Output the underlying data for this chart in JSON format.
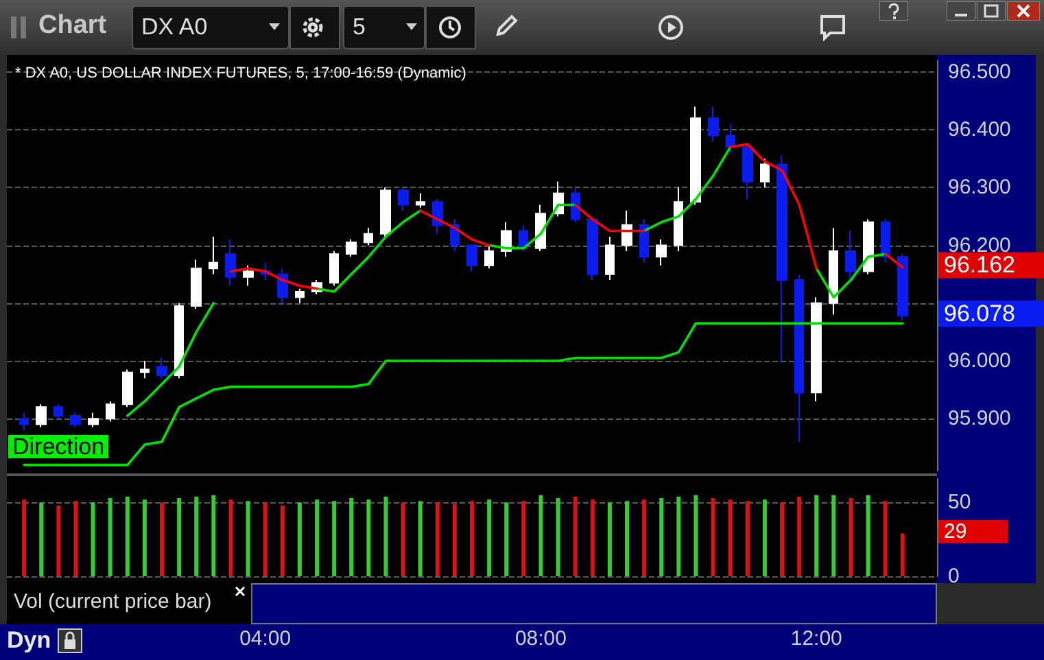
{
  "chart_data": [
    {
      "type": "candlestick",
      "title": "* DX A0, US DOLLAR INDEX FUTURES, 5, 17:00-16:59 (Dynamic)",
      "x": [
        0.5,
        0.75,
        1,
        1.25,
        1.5,
        1.75,
        2,
        2.25,
        2.5,
        2.75,
        3,
        3.25,
        3.5,
        3.75,
        4,
        4.25,
        4.5,
        4.75,
        5,
        5.25,
        5.5,
        5.75,
        6,
        6.25,
        6.5,
        6.75,
        7,
        7.25,
        7.5,
        7.75,
        8,
        8.25,
        8.5,
        8.75,
        9,
        9.25,
        9.5,
        9.75,
        10,
        10.25,
        10.5,
        10.75,
        11,
        11.25,
        11.5,
        11.75,
        12,
        12.25,
        12.5,
        12.75,
        13,
        13.25
      ],
      "ohlc": [
        [
          95.9,
          95.91,
          95.88,
          95.89
        ],
        [
          95.89,
          95.925,
          95.885,
          95.92
        ],
        [
          95.92,
          95.925,
          95.9,
          95.905
        ],
        [
          95.905,
          95.91,
          95.885,
          95.89
        ],
        [
          95.89,
          95.91,
          95.885,
          95.9
        ],
        [
          95.9,
          95.93,
          95.895,
          95.925
        ],
        [
          95.925,
          95.985,
          95.92,
          95.98
        ],
        [
          95.98,
          96.0,
          95.97,
          95.985
        ],
        [
          95.99,
          96.005,
          95.97,
          95.975
        ],
        [
          95.975,
          96.1,
          95.97,
          96.095
        ],
        [
          96.095,
          96.175,
          96.09,
          96.16
        ],
        [
          96.16,
          96.215,
          96.15,
          96.17
        ],
        [
          96.185,
          96.21,
          96.13,
          96.145
        ],
        [
          96.145,
          96.165,
          96.13,
          96.155
        ],
        [
          96.155,
          96.17,
          96.14,
          96.15
        ],
        [
          96.15,
          96.16,
          96.1,
          96.11
        ],
        [
          96.11,
          96.125,
          96.1,
          96.12
        ],
        [
          96.12,
          96.14,
          96.115,
          96.135
        ],
        [
          96.135,
          96.19,
          96.13,
          96.185
        ],
        [
          96.185,
          96.21,
          96.18,
          96.205
        ],
        [
          96.205,
          96.23,
          96.2,
          96.22
        ],
        [
          96.22,
          96.3,
          96.21,
          96.295
        ],
        [
          96.295,
          96.3,
          96.26,
          96.27
        ],
        [
          96.27,
          96.29,
          96.265,
          96.275
        ],
        [
          96.275,
          96.28,
          96.22,
          96.235
        ],
        [
          96.235,
          96.245,
          96.19,
          96.2
        ],
        [
          96.2,
          96.2,
          96.155,
          96.165
        ],
        [
          96.165,
          96.2,
          96.16,
          96.19
        ],
        [
          96.19,
          96.24,
          96.18,
          96.225
        ],
        [
          96.225,
          96.235,
          96.19,
          96.195
        ],
        [
          96.195,
          96.27,
          96.19,
          96.255
        ],
        [
          96.255,
          96.31,
          96.25,
          96.29
        ],
        [
          96.29,
          96.3,
          96.24,
          96.245
        ],
        [
          96.245,
          96.25,
          96.14,
          96.15
        ],
        [
          96.15,
          96.215,
          96.14,
          96.2
        ],
        [
          96.2,
          96.26,
          96.19,
          96.235
        ],
        [
          96.235,
          96.245,
          96.17,
          96.18
        ],
        [
          96.18,
          96.21,
          96.165,
          96.2
        ],
        [
          96.2,
          96.3,
          96.19,
          96.275
        ],
        [
          96.275,
          96.44,
          96.27,
          96.42
        ],
        [
          96.42,
          96.44,
          96.38,
          96.39
        ],
        [
          96.39,
          96.41,
          96.36,
          96.37
        ],
        [
          96.37,
          96.375,
          96.28,
          96.31
        ],
        [
          96.31,
          96.35,
          96.3,
          96.34
        ],
        [
          96.34,
          96.355,
          96.0,
          96.14
        ],
        [
          96.14,
          96.15,
          95.86,
          95.945
        ],
        [
          95.945,
          96.11,
          95.93,
          96.1
        ],
        [
          96.1,
          96.23,
          96.08,
          96.19
        ],
        [
          96.19,
          96.225,
          96.14,
          96.155
        ],
        [
          96.155,
          96.245,
          96.15,
          96.24
        ],
        [
          96.24,
          96.245,
          96.17,
          96.18
        ],
        [
          96.18,
          96.185,
          96.07,
          96.078
        ]
      ],
      "colors": [
        "#0a1cf0",
        "#ffffff",
        "#0a1cf0",
        "#0a1cf0",
        "#ffffff",
        "#ffffff",
        "#ffffff",
        "#ffffff",
        "#0a1cf0",
        "#ffffff",
        "#ffffff",
        "#ffffff",
        "#0a1cf0",
        "#ffffff",
        "#0a1cf0",
        "#0a1cf0",
        "#ffffff",
        "#ffffff",
        "#ffffff",
        "#ffffff",
        "#ffffff",
        "#ffffff",
        "#0a1cf0",
        "#ffffff",
        "#0a1cf0",
        "#0a1cf0",
        "#0a1cf0",
        "#ffffff",
        "#ffffff",
        "#0a1cf0",
        "#ffffff",
        "#ffffff",
        "#0a1cf0",
        "#0a1cf0",
        "#ffffff",
        "#ffffff",
        "#0a1cf0",
        "#ffffff",
        "#ffffff",
        "#ffffff",
        "#0a1cf0",
        "#0a1cf0",
        "#0a1cf0",
        "#ffffff",
        "#0a1cf0",
        "#0a1cf0",
        "#ffffff",
        "#ffffff",
        "#0a1cf0",
        "#ffffff",
        "#0a1cf0",
        "#0a1cf0"
      ],
      "series": [
        {
          "type": "line",
          "color": "#00e000",
          "values": [
            null,
            null,
            null,
            null,
            null,
            null,
            95.905,
            95.93,
            95.96,
            95.99,
            96.05,
            96.1,
            null,
            null,
            null,
            null,
            null,
            96.125,
            96.12,
            96.15,
            96.18,
            96.215,
            96.24,
            96.26,
            null,
            null,
            null,
            96.2,
            96.195,
            96.195,
            96.22,
            96.27,
            96.27,
            null,
            null,
            null,
            96.225,
            96.24,
            96.25,
            96.28,
            96.32,
            96.37,
            null,
            null,
            null,
            null,
            96.16,
            96.11,
            96.14,
            96.18,
            96.185,
            null
          ]
        },
        {
          "type": "line",
          "color": "#ff0000",
          "values": [
            null,
            null,
            null,
            null,
            null,
            null,
            null,
            null,
            null,
            null,
            null,
            null,
            96.155,
            96.16,
            96.155,
            96.14,
            96.13,
            96.125,
            null,
            null,
            null,
            null,
            null,
            96.26,
            96.245,
            96.23,
            96.21,
            96.2,
            null,
            null,
            null,
            null,
            96.27,
            96.245,
            96.225,
            96.225,
            96.225,
            null,
            null,
            null,
            null,
            96.37,
            96.375,
            96.345,
            96.33,
            96.27,
            96.16,
            null,
            null,
            null,
            96.185,
            96.162
          ]
        },
        {
          "type": "line",
          "color": "#00e000",
          "values": [
            95.82,
            95.82,
            95.82,
            95.82,
            95.82,
            95.82,
            95.82,
            95.855,
            95.86,
            95.92,
            95.935,
            95.95,
            95.955,
            95.955,
            95.955,
            95.955,
            95.955,
            95.955,
            95.955,
            95.955,
            95.96,
            96.0,
            96.0,
            96.0,
            96.0,
            96.0,
            96.0,
            96.0,
            96.0,
            96.0,
            96.0,
            96.0,
            96.005,
            96.005,
            96.005,
            96.005,
            96.005,
            96.005,
            96.015,
            96.065,
            96.065,
            96.065,
            96.065,
            96.065,
            96.065,
            96.065,
            96.065,
            96.065,
            96.065,
            96.065,
            96.065,
            96.065
          ]
        }
      ],
      "xlim": [
        0.25,
        13.75
      ],
      "ylim": [
        95.81,
        96.52
      ],
      "yticks": [
        {
          "value": 95.9,
          "label": "95.900"
        },
        {
          "value": 96.0,
          "label": "96.000"
        },
        {
          "value": 96.1,
          "label": null
        },
        {
          "value": 96.2,
          "label": "96.200"
        },
        {
          "value": 96.3,
          "label": "96.300"
        },
        {
          "value": 96.4,
          "label": "96.400"
        },
        {
          "value": 96.5,
          "label": "96.500"
        }
      ],
      "grid": "y",
      "marker": "none",
      "line_style": "solid",
      "tick_labels": "y",
      "annotations": [
        "Chart",
        "DX A0",
        "5",
        "Direction",
        "96.162",
        "96.078"
      ]
    },
    {
      "type": "bar",
      "x": [
        0.5,
        0.75,
        1,
        1.25,
        1.5,
        1.75,
        2,
        2.25,
        2.5,
        2.75,
        3,
        3.25,
        3.5,
        3.75,
        4,
        4.25,
        4.5,
        4.75,
        5,
        5.25,
        5.5,
        5.75,
        6,
        6.25,
        6.5,
        6.75,
        7,
        7.25,
        7.5,
        7.75,
        8,
        8.25,
        8.5,
        8.75,
        9,
        9.25,
        9.5,
        9.75,
        10,
        10.25,
        10.5,
        10.75,
        11,
        11.25,
        11.5,
        11.75,
        12,
        12.25,
        12.5,
        12.75,
        13,
        13.25
      ],
      "values": [
        52,
        50,
        48,
        51,
        50,
        53,
        54,
        52,
        50,
        53,
        54,
        55,
        52,
        51,
        50,
        48,
        50,
        52,
        51,
        53,
        52,
        54,
        50,
        51,
        50,
        49,
        51,
        52,
        50,
        51,
        55,
        53,
        54,
        52,
        50,
        51,
        52,
        53,
        54,
        55,
        53,
        52,
        51,
        52,
        50,
        54,
        55,
        55,
        53,
        55,
        51,
        29
      ],
      "colors": [
        "#dd1111",
        "#33cc33",
        "#dd1111",
        "#dd1111",
        "#33cc33",
        "#33cc33",
        "#33cc33",
        "#33cc33",
        "#dd1111",
        "#33cc33",
        "#33cc33",
        "#33cc33",
        "#dd1111",
        "#33cc33",
        "#dd1111",
        "#dd1111",
        "#33cc33",
        "#33cc33",
        "#33cc33",
        "#33cc33",
        "#33cc33",
        "#33cc33",
        "#dd1111",
        "#33cc33",
        "#dd1111",
        "#dd1111",
        "#dd1111",
        "#33cc33",
        "#33cc33",
        "#dd1111",
        "#33cc33",
        "#33cc33",
        "#dd1111",
        "#dd1111",
        "#33cc33",
        "#33cc33",
        "#dd1111",
        "#33cc33",
        "#33cc33",
        "#33cc33",
        "#dd1111",
        "#dd1111",
        "#dd1111",
        "#33cc33",
        "#dd1111",
        "#dd1111",
        "#33cc33",
        "#33cc33",
        "#dd1111",
        "#33cc33",
        "#dd1111",
        "#dd1111"
      ],
      "xlim": [
        0.25,
        13.75
      ],
      "xticks": [
        {
          "value": 4,
          "label": "04:00"
        },
        {
          "value": 8,
          "label": "08:00"
        },
        {
          "value": 12,
          "label": "12:00"
        }
      ],
      "ylim": [
        0,
        66
      ],
      "yticks": [
        0,
        50
      ],
      "grid": "y",
      "annotations": [
        "Vol (current price bar)",
        "Dyn",
        "29"
      ]
    }
  ]
}
